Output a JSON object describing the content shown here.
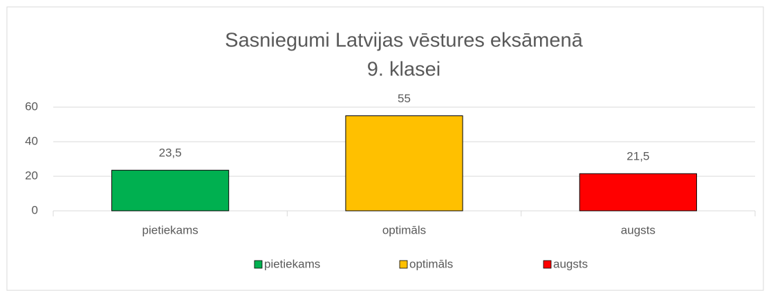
{
  "chart_data": {
    "type": "bar",
    "title": [
      "Sasniegumi Latvijas vēstures eksāmenā",
      "9. klasei"
    ],
    "categories": [
      "pietiekams",
      "optimāls",
      "augsts"
    ],
    "values": [
      23.5,
      55,
      21.5
    ],
    "value_labels": [
      "23,5",
      "55",
      "21,5"
    ],
    "colors": [
      "#00b050",
      "#ffc000",
      "#ff0000"
    ],
    "ylim": [
      0,
      60
    ],
    "yticks": [
      0,
      20,
      40,
      60
    ],
    "grid": true,
    "legend": "bottom"
  }
}
